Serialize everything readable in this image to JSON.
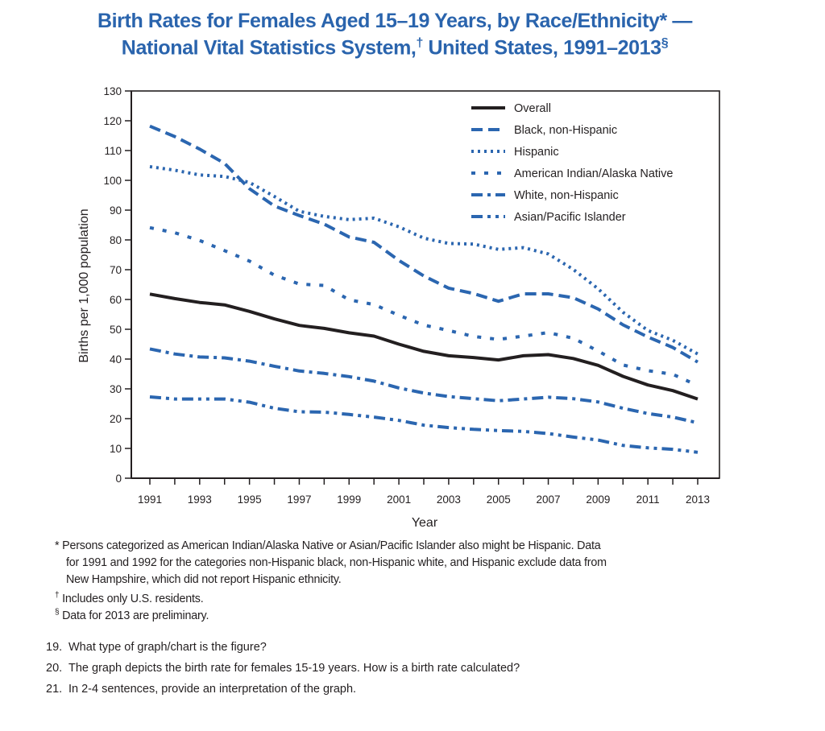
{
  "header": {
    "title_line1": "Birth Rates for Females Aged 15–19 Years, by Race/Ethnicity* —",
    "title_line2": "National Vital Statistics System,",
    "title_line2_mark": "†",
    "title_line2_rest": " United States, 1991–2013",
    "title_line2_end_mark": "§"
  },
  "chart_data": {
    "type": "line",
    "title": "Birth Rates for Females Aged 15–19 Years, by Race/Ethnicity* — National Vital Statistics System,† United States, 1991–2013§",
    "xlabel": "Year",
    "ylabel": "Births per 1,000 population",
    "xlim": [
      1991,
      2013
    ],
    "ylim": [
      0,
      130
    ],
    "yticks": [
      "0",
      "10",
      "20",
      "30",
      "40",
      "50",
      "60",
      "70",
      "80",
      "90",
      "100",
      "110",
      "120",
      "130"
    ],
    "xticks": [
      "1991",
      "1993",
      "1995",
      "1997",
      "1999",
      "2001",
      "2003",
      "2005",
      "2007",
      "2009",
      "2011",
      "2013"
    ],
    "grid": false,
    "legend_position": "top-right",
    "x": [
      1991,
      1992,
      1993,
      1994,
      1995,
      1996,
      1997,
      1998,
      1999,
      2000,
      2001,
      2002,
      2003,
      2004,
      2005,
      2006,
      2007,
      2008,
      2009,
      2010,
      2011,
      2012,
      2013
    ],
    "series": [
      {
        "name": "Overall",
        "color": "#231f20",
        "style": "solid",
        "values": [
          61.8,
          60.3,
          59.0,
          58.2,
          56.0,
          53.5,
          51.3,
          50.3,
          48.8,
          47.7,
          45.0,
          42.6,
          41.1,
          40.5,
          39.7,
          41.1,
          41.5,
          40.2,
          37.9,
          34.2,
          31.3,
          29.4,
          26.6
        ]
      },
      {
        "name": "Black, non-Hispanic",
        "color": "#2b66b0",
        "style": "dashed",
        "values": [
          118.2,
          114.7,
          110.5,
          105.7,
          97.2,
          91.4,
          88.2,
          85.3,
          81.0,
          79.2,
          73.1,
          67.9,
          63.8,
          62.0,
          59.4,
          61.9,
          61.9,
          60.6,
          56.8,
          51.5,
          47.4,
          43.9,
          39.0
        ]
      },
      {
        "name": "Hispanic",
        "color": "#2b66b0",
        "style": "dotted",
        "values": [
          104.6,
          103.4,
          101.8,
          101.3,
          99.3,
          94.6,
          89.6,
          87.9,
          86.8,
          87.3,
          84.4,
          80.6,
          78.8,
          78.6,
          76.8,
          77.4,
          75.3,
          70.1,
          63.6,
          55.7,
          49.6,
          46.3,
          41.7
        ]
      },
      {
        "name": "American Indian/Alaska Native",
        "color": "#2b66b0",
        "style": "short-dashed",
        "values": [
          84.1,
          82.4,
          79.8,
          76.4,
          72.9,
          68.2,
          65.2,
          64.7,
          59.9,
          58.3,
          54.7,
          51.4,
          49.6,
          47.6,
          46.6,
          47.7,
          48.9,
          47.0,
          42.7,
          38.0,
          36.1,
          34.9,
          31.1
        ]
      },
      {
        "name": "White, non-Hispanic",
        "color": "#2b66b0",
        "style": "dash-dot",
        "values": [
          43.4,
          41.7,
          40.7,
          40.4,
          39.3,
          37.6,
          36.0,
          35.2,
          34.1,
          32.6,
          30.3,
          28.6,
          27.4,
          26.7,
          26.0,
          26.6,
          27.2,
          26.7,
          25.6,
          23.5,
          21.7,
          20.5,
          18.6
        ]
      },
      {
        "name": "Asian/Pacific Islander",
        "color": "#2b66b0",
        "style": "dash-dot-dot",
        "values": [
          27.3,
          26.6,
          26.6,
          26.6,
          25.5,
          23.5,
          22.3,
          22.2,
          21.4,
          20.5,
          19.4,
          17.8,
          17.0,
          16.4,
          16.0,
          15.7,
          15.0,
          13.8,
          12.8,
          11.0,
          10.2,
          9.7,
          8.7
        ]
      }
    ]
  },
  "footnotes": {
    "star_mark": "*",
    "star_line1": " Persons categorized as American Indian/Alaska Native or Asian/Pacific Islander also might be Hispanic. Data",
    "star_line2": "for 1991 and 1992 for the categories non-Hispanic black, non-Hispanic white, and Hispanic exclude data from",
    "star_line3": "New Hampshire, which did not report Hispanic ethnicity.",
    "dagger_mark": "†",
    "dagger_text": " Includes only U.S. residents.",
    "section_mark": "§",
    "section_text": " Data for 2013 are preliminary."
  },
  "questions": [
    {
      "num": "19.",
      "text": "What type of graph/chart is the figure?"
    },
    {
      "num": "20.",
      "text": "The graph depicts the birth rate for females 15-19 years.  How is a birth rate calculated?"
    },
    {
      "num": "21.",
      "text": "In 2-4 sentences, provide an interpretation of the graph."
    }
  ]
}
